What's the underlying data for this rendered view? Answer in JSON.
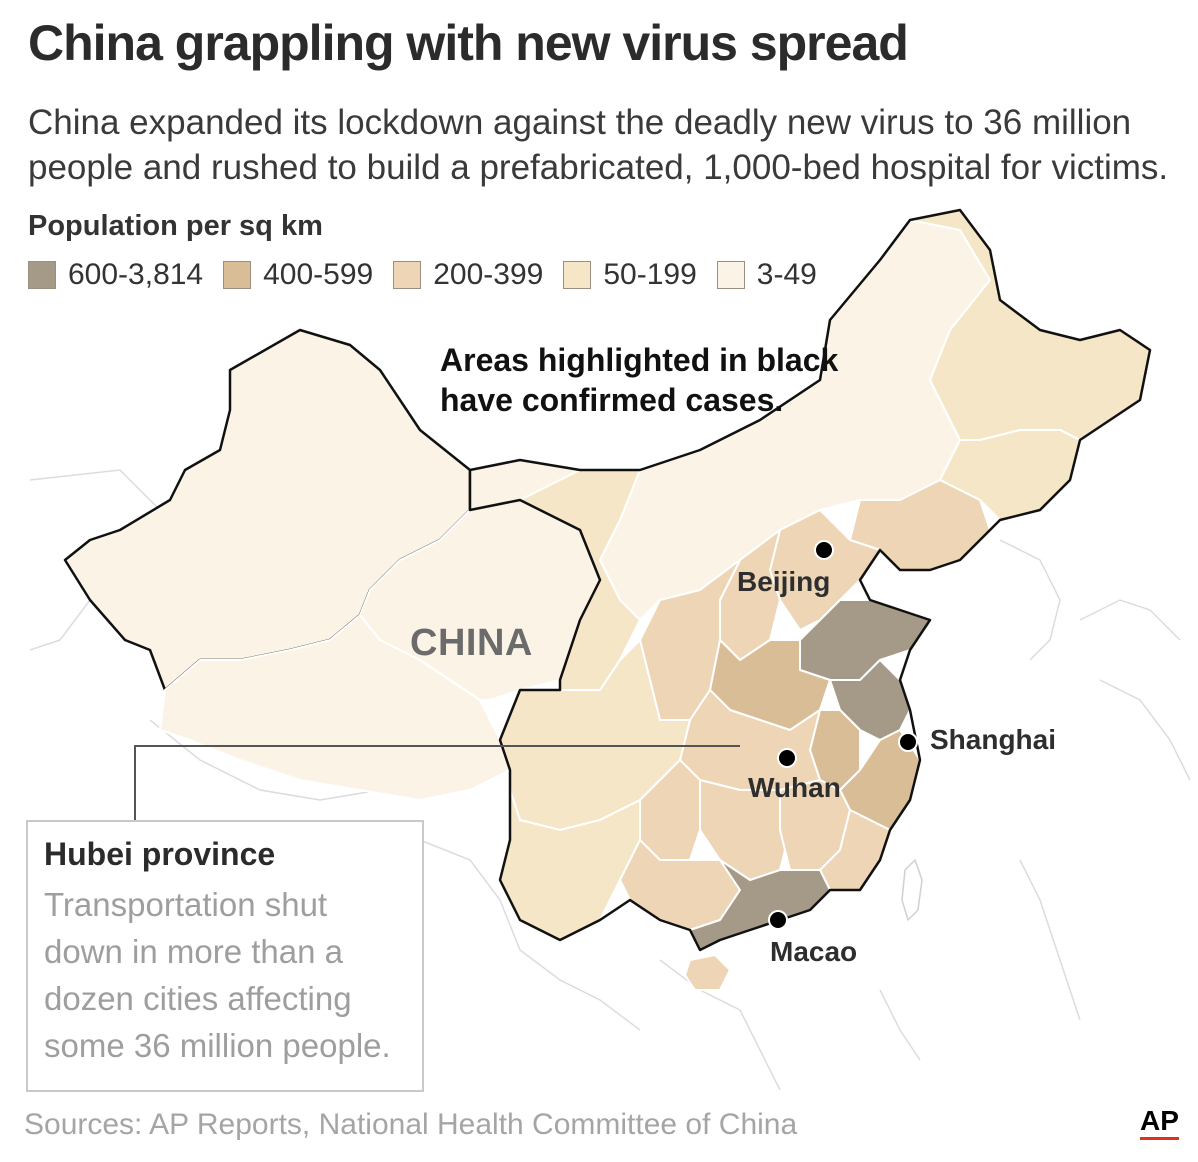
{
  "header": {
    "title": "China grappling with new virus spread",
    "subtitle": "China expanded its lockdown against the deadly new virus to 36 million people and rushed to build a prefabricated, 1,000-bed hospital for victims."
  },
  "legend": {
    "title": "Population per sq km",
    "items": [
      {
        "label": "600-3,814",
        "color": "#a59988"
      },
      {
        "label": "400-599",
        "color": "#d9bd96"
      },
      {
        "label": "200-399",
        "color": "#edd5b6"
      },
      {
        "label": "50-199",
        "color": "#f6e6c8"
      },
      {
        "label": "3-49",
        "color": "#fbf4e6"
      }
    ]
  },
  "map": {
    "annotation": "Areas highlighted in black have confirmed cases.",
    "country_label": "CHINA",
    "cities": [
      {
        "name": "Beijing"
      },
      {
        "name": "Shanghai"
      },
      {
        "name": "Wuhan"
      },
      {
        "name": "Macao"
      }
    ],
    "marker_color": "#000000",
    "highlight_stroke": "#000000"
  },
  "callout": {
    "title": "Hubei province",
    "body": "Transportation shut down in more than a dozen cities affecting some 36 million people."
  },
  "footer": {
    "sources": "Sources: AP Reports, National Health Committee of China",
    "logo": "AP"
  }
}
